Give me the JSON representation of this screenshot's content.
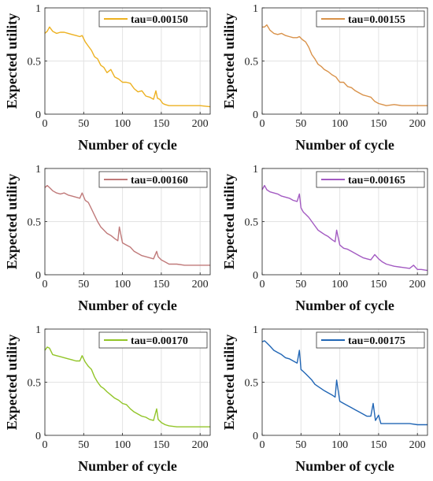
{
  "chart_data": [
    {
      "type": "line",
      "xlabel": "Number of cycle",
      "ylabel": "Expected utility",
      "xlim": [
        0,
        213
      ],
      "ylim": [
        0,
        1
      ],
      "xticks": [
        "0",
        "50",
        "100",
        "150",
        "200"
      ],
      "yticks": [
        "0",
        "0.5",
        "1"
      ],
      "grid": true,
      "legend_position": "top-right",
      "series": [
        {
          "name": "tau=0.00150",
          "color": "#EDB120",
          "x": [
            0,
            3,
            6,
            10,
            15,
            20,
            25,
            30,
            35,
            40,
            45,
            48,
            52,
            56,
            60,
            64,
            68,
            72,
            76,
            80,
            85,
            90,
            95,
            100,
            105,
            110,
            115,
            120,
            125,
            130,
            135,
            140,
            143,
            145,
            148,
            152,
            155,
            160,
            170,
            180,
            190,
            200,
            213
          ],
          "y": [
            0.76,
            0.78,
            0.82,
            0.78,
            0.76,
            0.77,
            0.77,
            0.76,
            0.75,
            0.74,
            0.73,
            0.74,
            0.68,
            0.64,
            0.6,
            0.54,
            0.52,
            0.46,
            0.44,
            0.39,
            0.42,
            0.35,
            0.33,
            0.3,
            0.3,
            0.29,
            0.24,
            0.21,
            0.22,
            0.17,
            0.16,
            0.14,
            0.22,
            0.15,
            0.14,
            0.1,
            0.09,
            0.08,
            0.08,
            0.08,
            0.08,
            0.08,
            0.07
          ]
        }
      ]
    },
    {
      "type": "line",
      "xlabel": "Number of cycle",
      "ylabel": "Expected utility",
      "xlim": [
        0,
        213
      ],
      "ylim": [
        0,
        1
      ],
      "xticks": [
        "0",
        "50",
        "100",
        "150",
        "200"
      ],
      "yticks": [
        "0",
        "0.5",
        "1"
      ],
      "grid": true,
      "legend_position": "top-right",
      "series": [
        {
          "name": "tau=0.00155",
          "color": "#D9924A",
          "x": [
            0,
            3,
            6,
            10,
            15,
            20,
            25,
            30,
            35,
            40,
            45,
            48,
            52,
            56,
            60,
            64,
            68,
            72,
            76,
            80,
            85,
            90,
            95,
            100,
            105,
            110,
            115,
            120,
            125,
            130,
            135,
            140,
            145,
            150,
            155,
            160,
            170,
            180,
            190,
            200,
            213
          ],
          "y": [
            0.82,
            0.82,
            0.84,
            0.79,
            0.76,
            0.75,
            0.76,
            0.74,
            0.73,
            0.72,
            0.72,
            0.73,
            0.7,
            0.68,
            0.63,
            0.56,
            0.52,
            0.47,
            0.45,
            0.42,
            0.4,
            0.37,
            0.35,
            0.3,
            0.3,
            0.26,
            0.25,
            0.22,
            0.2,
            0.18,
            0.17,
            0.16,
            0.12,
            0.1,
            0.09,
            0.08,
            0.09,
            0.08,
            0.08,
            0.08,
            0.08
          ]
        }
      ]
    },
    {
      "type": "line",
      "xlabel": "Number of cycle",
      "ylabel": "Expected utility",
      "xlim": [
        0,
        213
      ],
      "ylim": [
        0,
        1
      ],
      "xticks": [
        "0",
        "50",
        "100",
        "150",
        "200"
      ],
      "yticks": [
        "0",
        "0.5",
        "1"
      ],
      "grid": true,
      "legend_position": "top-right",
      "series": [
        {
          "name": "tau=0.00160",
          "color": "#C07A7A",
          "x": [
            0,
            3,
            6,
            10,
            15,
            20,
            25,
            30,
            35,
            40,
            45,
            48,
            52,
            56,
            60,
            64,
            68,
            72,
            76,
            80,
            85,
            90,
            94,
            96,
            100,
            105,
            110,
            115,
            120,
            125,
            130,
            135,
            140,
            144,
            146,
            150,
            155,
            160,
            170,
            180,
            190,
            200,
            213
          ],
          "y": [
            0.82,
            0.84,
            0.82,
            0.79,
            0.77,
            0.76,
            0.77,
            0.75,
            0.74,
            0.73,
            0.72,
            0.77,
            0.7,
            0.68,
            0.62,
            0.56,
            0.5,
            0.45,
            0.42,
            0.39,
            0.37,
            0.34,
            0.32,
            0.45,
            0.3,
            0.28,
            0.26,
            0.22,
            0.2,
            0.18,
            0.17,
            0.16,
            0.15,
            0.22,
            0.17,
            0.14,
            0.12,
            0.1,
            0.1,
            0.09,
            0.09,
            0.09,
            0.09
          ]
        }
      ]
    },
    {
      "type": "line",
      "xlabel": "Number of cycle",
      "ylabel": "Expected utility",
      "xlim": [
        0,
        213
      ],
      "ylim": [
        0,
        1
      ],
      "xticks": [
        "0",
        "50",
        "100",
        "150",
        "200"
      ],
      "yticks": [
        "0",
        "0.5",
        "1"
      ],
      "grid": true,
      "legend_position": "top-right",
      "series": [
        {
          "name": "tau=0.00165",
          "color": "#A35BC2",
          "x": [
            0,
            3,
            6,
            10,
            15,
            20,
            25,
            30,
            35,
            40,
            45,
            48,
            50,
            53,
            56,
            60,
            64,
            68,
            72,
            76,
            80,
            85,
            90,
            94,
            96,
            100,
            105,
            110,
            115,
            120,
            125,
            130,
            135,
            140,
            145,
            150,
            155,
            160,
            170,
            180,
            190,
            195,
            200,
            205,
            213
          ],
          "y": [
            0.8,
            0.84,
            0.8,
            0.78,
            0.77,
            0.76,
            0.74,
            0.73,
            0.72,
            0.7,
            0.69,
            0.76,
            0.63,
            0.59,
            0.57,
            0.54,
            0.5,
            0.46,
            0.42,
            0.4,
            0.38,
            0.36,
            0.33,
            0.31,
            0.42,
            0.28,
            0.25,
            0.24,
            0.22,
            0.2,
            0.18,
            0.16,
            0.15,
            0.14,
            0.19,
            0.15,
            0.12,
            0.1,
            0.08,
            0.07,
            0.06,
            0.09,
            0.05,
            0.05,
            0.04
          ]
        }
      ]
    },
    {
      "type": "line",
      "xlabel": "Number of cycle",
      "ylabel": "Expected utility",
      "xlim": [
        0,
        213
      ],
      "ylim": [
        0,
        1
      ],
      "xticks": [
        "0",
        "50",
        "100",
        "150",
        "200"
      ],
      "yticks": [
        "0",
        "0.5",
        "1"
      ],
      "grid": true,
      "legend_position": "top-right",
      "series": [
        {
          "name": "tau=0.00170",
          "color": "#92C528",
          "x": [
            0,
            3,
            6,
            10,
            15,
            20,
            25,
            30,
            35,
            40,
            45,
            48,
            52,
            56,
            60,
            64,
            68,
            72,
            76,
            80,
            85,
            90,
            95,
            100,
            105,
            110,
            115,
            120,
            125,
            130,
            135,
            140,
            144,
            146,
            150,
            155,
            160,
            170,
            180,
            190,
            200,
            213
          ],
          "y": [
            0.8,
            0.83,
            0.82,
            0.76,
            0.75,
            0.74,
            0.73,
            0.72,
            0.71,
            0.7,
            0.7,
            0.75,
            0.69,
            0.65,
            0.62,
            0.55,
            0.5,
            0.46,
            0.44,
            0.41,
            0.38,
            0.35,
            0.33,
            0.3,
            0.29,
            0.25,
            0.22,
            0.2,
            0.18,
            0.17,
            0.15,
            0.14,
            0.25,
            0.15,
            0.12,
            0.1,
            0.09,
            0.08,
            0.08,
            0.08,
            0.08,
            0.08
          ]
        }
      ]
    },
    {
      "type": "line",
      "xlabel": "Number of cycle",
      "ylabel": "Expected utility",
      "xlim": [
        0,
        213
      ],
      "ylim": [
        0,
        1
      ],
      "xticks": [
        "0",
        "50",
        "100",
        "150",
        "200"
      ],
      "yticks": [
        "0",
        "0.5",
        "1"
      ],
      "grid": true,
      "legend_position": "top-right",
      "series": [
        {
          "name": "tau=0.00175",
          "color": "#2166B5",
          "x": [
            0,
            3,
            6,
            10,
            15,
            20,
            25,
            30,
            35,
            40,
            45,
            48,
            50,
            53,
            56,
            60,
            64,
            68,
            72,
            76,
            80,
            85,
            90,
            94,
            96,
            100,
            105,
            110,
            115,
            120,
            125,
            130,
            135,
            140,
            143,
            146,
            150,
            153,
            156,
            160,
            170,
            180,
            190,
            200,
            213
          ],
          "y": [
            0.88,
            0.89,
            0.87,
            0.84,
            0.8,
            0.78,
            0.76,
            0.73,
            0.72,
            0.7,
            0.68,
            0.8,
            0.62,
            0.6,
            0.58,
            0.55,
            0.52,
            0.48,
            0.46,
            0.44,
            0.42,
            0.4,
            0.38,
            0.36,
            0.52,
            0.32,
            0.3,
            0.28,
            0.26,
            0.24,
            0.22,
            0.2,
            0.18,
            0.18,
            0.3,
            0.14,
            0.19,
            0.11,
            0.11,
            0.11,
            0.11,
            0.11,
            0.11,
            0.1,
            0.1
          ]
        }
      ]
    }
  ]
}
